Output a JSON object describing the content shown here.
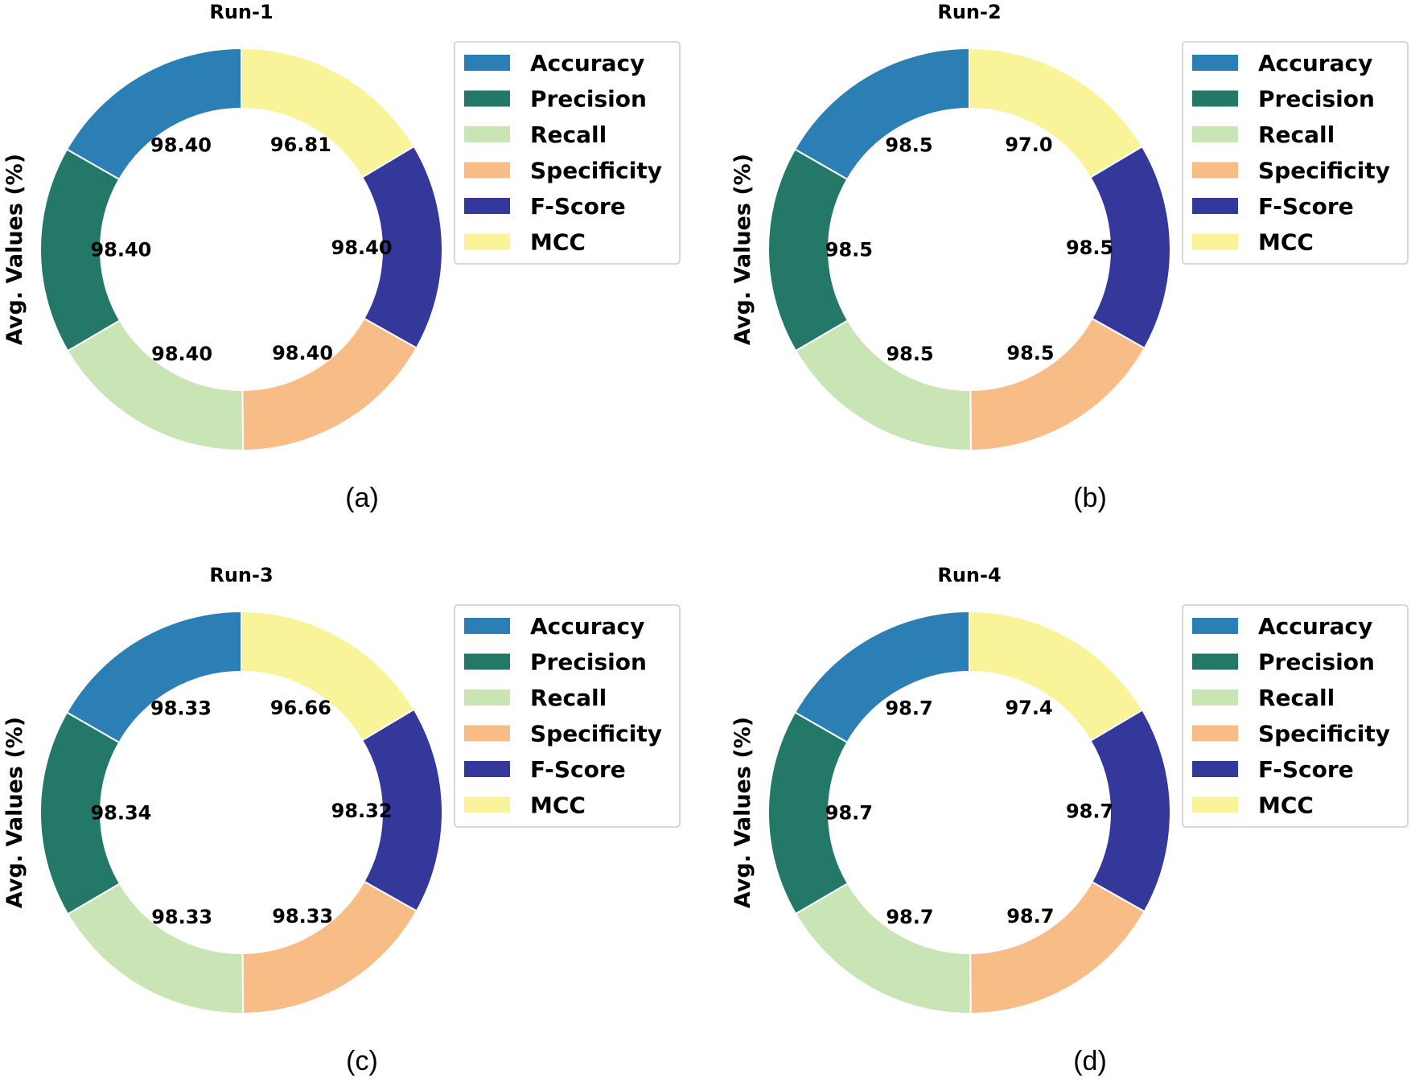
{
  "chart_data": [
    {
      "type": "pie",
      "title": "Run-1",
      "caption": "(a)",
      "ylabel": "Avg. Values (%)",
      "categories": [
        "Accuracy",
        "Precision",
        "Recall",
        "Specificity",
        "F-Score",
        "MCC"
      ],
      "values": [
        98.4,
        98.4,
        98.4,
        98.4,
        98.4,
        96.81
      ],
      "value_labels": [
        "98.40",
        "98.40",
        "98.40",
        "98.40",
        "98.40",
        "96.81"
      ],
      "legend": [
        "Accuracy",
        "Precision",
        "Recall",
        "Specificity",
        "F-Score",
        "MCC"
      ],
      "legend_position": "upper right"
    },
    {
      "type": "pie",
      "title": "Run-2",
      "caption": "(b)",
      "ylabel": "Avg. Values (%)",
      "categories": [
        "Accuracy",
        "Precision",
        "Recall",
        "Specificity",
        "F-Score",
        "MCC"
      ],
      "values": [
        98.5,
        98.5,
        98.5,
        98.5,
        98.5,
        97.0
      ],
      "value_labels": [
        "98.5",
        "98.5",
        "98.5",
        "98.5",
        "98.5",
        "97.0"
      ],
      "legend": [
        "Accuracy",
        "Precision",
        "Recall",
        "Specificity",
        "F-Score",
        "MCC"
      ],
      "legend_position": "upper right"
    },
    {
      "type": "pie",
      "title": "Run-3",
      "caption": "(c)",
      "ylabel": "Avg. Values (%)",
      "categories": [
        "Accuracy",
        "Precision",
        "Recall",
        "Specificity",
        "F-Score",
        "MCC"
      ],
      "values": [
        98.33,
        98.34,
        98.33,
        98.33,
        98.32,
        96.66
      ],
      "value_labels": [
        "98.33",
        "98.34",
        "98.33",
        "98.33",
        "98.32",
        "96.66"
      ],
      "legend": [
        "Accuracy",
        "Precision",
        "Recall",
        "Specificity",
        "F-Score",
        "MCC"
      ],
      "legend_position": "upper right"
    },
    {
      "type": "pie",
      "title": "Run-4",
      "caption": "(d)",
      "ylabel": "Avg. Values (%)",
      "categories": [
        "Accuracy",
        "Precision",
        "Recall",
        "Specificity",
        "F-Score",
        "MCC"
      ],
      "values": [
        98.7,
        98.7,
        98.7,
        98.7,
        98.7,
        97.4
      ],
      "value_labels": [
        "98.7",
        "98.7",
        "98.7",
        "98.7",
        "98.7",
        "97.4"
      ],
      "legend": [
        "Accuracy",
        "Precision",
        "Recall",
        "Specificity",
        "F-Score",
        "MCC"
      ],
      "legend_position": "upper right"
    }
  ],
  "colors": [
    "#2b7fb5",
    "#237867",
    "#c9e4b5",
    "#f8bd87",
    "#33389a",
    "#f9f39a"
  ]
}
